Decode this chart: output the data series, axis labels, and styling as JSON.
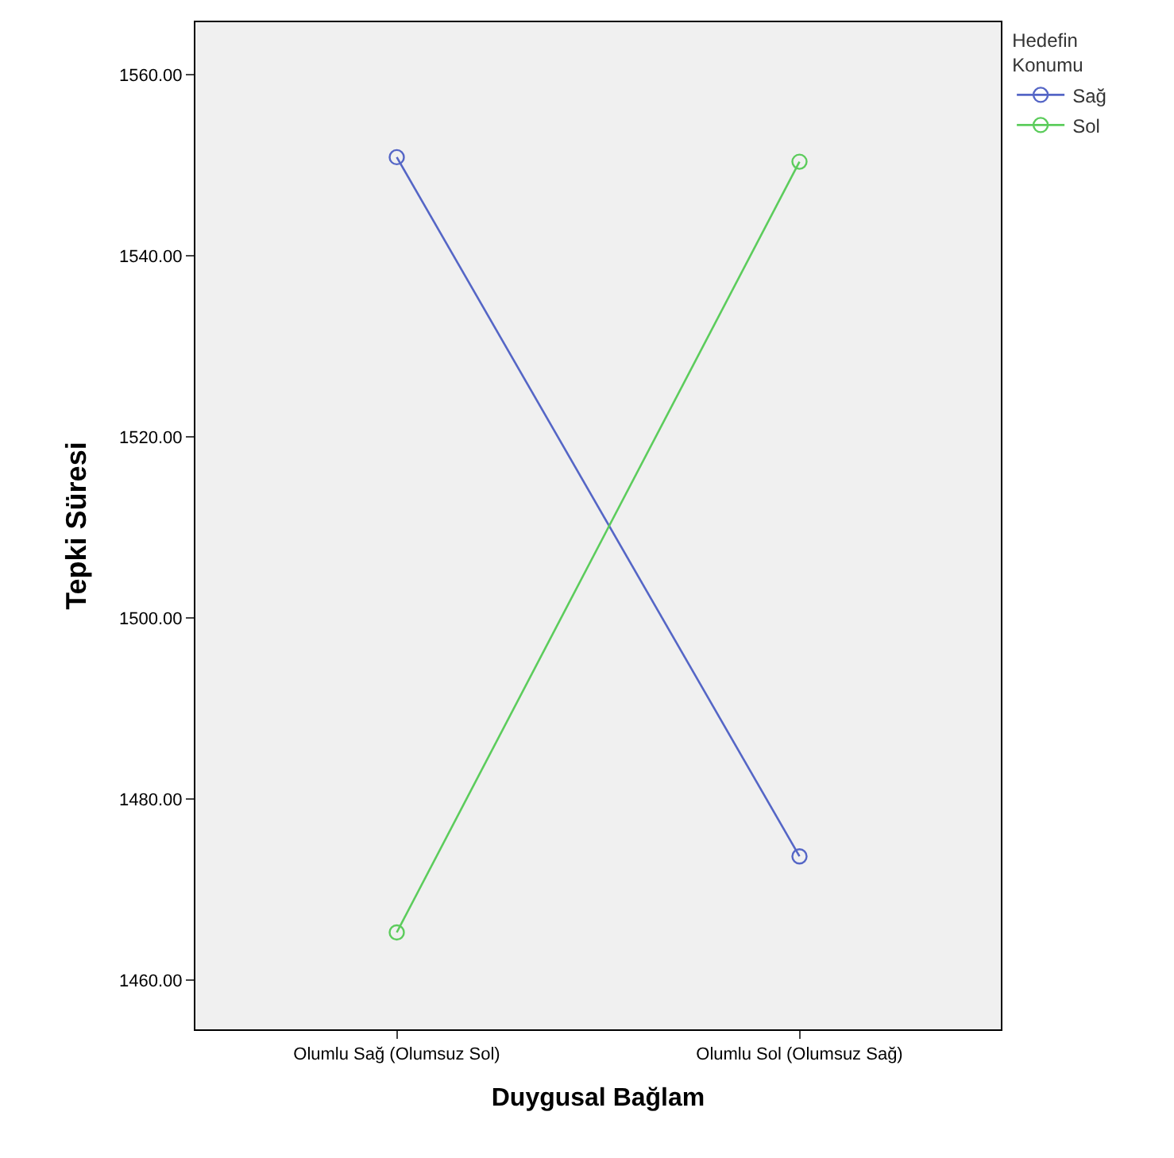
{
  "chart_data": {
    "type": "line",
    "xlabel": "Duygusal Bağlam",
    "ylabel": "Tepki Süresi",
    "legend_title": "Hedefin\nKonumu",
    "categories": [
      "Olumlu Sağ (Olumsuz Sol)",
      "Olumlu Sol (Olumsuz Sağ)"
    ],
    "series": [
      {
        "name": "Sağ",
        "color": "#5566c6",
        "values": [
          1550.9,
          1473.7
        ]
      },
      {
        "name": "Sol",
        "color": "#5ccc5c",
        "values": [
          1465.3,
          1550.4
        ]
      }
    ],
    "ylim": [
      1454.6,
      1565.8
    ],
    "yticks": [
      {
        "value": 1460,
        "label": "1460.00"
      },
      {
        "value": 1480,
        "label": "1480.00"
      },
      {
        "value": 1500,
        "label": "1500.00"
      },
      {
        "value": 1520,
        "label": "1520.00"
      },
      {
        "value": 1540,
        "label": "1540.00"
      },
      {
        "value": 1560,
        "label": "1560.00"
      }
    ],
    "marker": "circle",
    "line_style": "solid",
    "grid": false,
    "legend": "top right"
  }
}
